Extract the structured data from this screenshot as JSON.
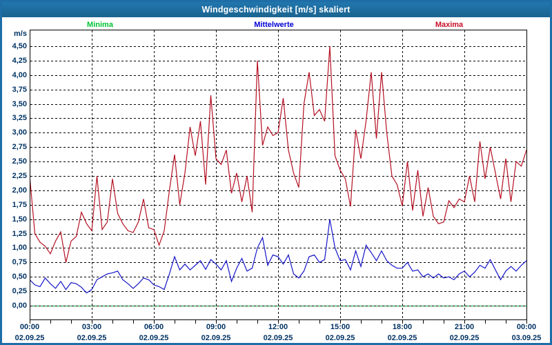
{
  "window": {
    "title": "Windgeschwindigkeit [m/s] skaliert"
  },
  "legend": {
    "items": [
      {
        "label": "Minima",
        "color": "#00c233"
      },
      {
        "label": "Mittelwerte",
        "color": "#0000d6"
      },
      {
        "label": "Maxima",
        "color": "#c80f25"
      }
    ]
  },
  "chart_data": {
    "type": "line",
    "title": "Windgeschwindigkeit [m/s] skaliert",
    "ylabel": "m/s",
    "xlabel": "",
    "grid": "dashed",
    "legend_position": "top",
    "ylim": [
      -0.24,
      4.79
    ],
    "y_ticks": [
      {
        "value": 4.5,
        "label": "4,50"
      },
      {
        "value": 4.25,
        "label": "4,25"
      },
      {
        "value": 4.0,
        "label": "4,00"
      },
      {
        "value": 3.75,
        "label": "3,75"
      },
      {
        "value": 3.5,
        "label": "3,50"
      },
      {
        "value": 3.25,
        "label": "3,25"
      },
      {
        "value": 3.0,
        "label": "3,00"
      },
      {
        "value": 2.75,
        "label": "2,75"
      },
      {
        "value": 2.5,
        "label": "2,50"
      },
      {
        "value": 2.25,
        "label": "2,25"
      },
      {
        "value": 2.0,
        "label": "2,00"
      },
      {
        "value": 1.75,
        "label": "1,75"
      },
      {
        "value": 1.5,
        "label": "1,50"
      },
      {
        "value": 1.25,
        "label": "1,25"
      },
      {
        "value": 1.0,
        "label": "1,00"
      },
      {
        "value": 0.75,
        "label": "0,75"
      },
      {
        "value": 0.5,
        "label": "0,50"
      },
      {
        "value": 0.25,
        "label": "0,25"
      },
      {
        "value": 0.0,
        "label": "0,00"
      }
    ],
    "x_range_hours": [
      0,
      24
    ],
    "x_major_ticks": [
      {
        "hour": 0,
        "time": "00:00",
        "date": "02.09.25"
      },
      {
        "hour": 3,
        "time": "03:00",
        "date": "02.09.25"
      },
      {
        "hour": 6,
        "time": "06:00",
        "date": "02.09.25"
      },
      {
        "hour": 9,
        "time": "09:00",
        "date": "02.09.25"
      },
      {
        "hour": 12,
        "time": "12:00",
        "date": "02.09.25"
      },
      {
        "hour": 15,
        "time": "15:00",
        "date": "02.09.25"
      },
      {
        "hour": 18,
        "time": "18:00",
        "date": "02.09.25"
      },
      {
        "hour": 21,
        "time": "21:00",
        "date": "02.09.25"
      },
      {
        "hour": 24,
        "time": "00:00",
        "date": "03.09.25"
      }
    ],
    "x_minor_tick_every_hours": 1,
    "sample_interval_minutes": 15,
    "series": [
      {
        "name": "Minima",
        "color": "#00b43c",
        "constant_value": 0.0
      },
      {
        "name": "Mittelwerte",
        "color": "#1414c8",
        "values": [
          0.45,
          0.36,
          0.33,
          0.48,
          0.38,
          0.3,
          0.42,
          0.28,
          0.4,
          0.38,
          0.32,
          0.22,
          0.28,
          0.45,
          0.5,
          0.55,
          0.57,
          0.6,
          0.45,
          0.38,
          0.3,
          0.38,
          0.48,
          0.45,
          0.36,
          0.33,
          0.28,
          0.55,
          0.85,
          0.62,
          0.72,
          0.62,
          0.7,
          0.78,
          0.63,
          0.8,
          0.72,
          0.62,
          0.78,
          0.42,
          0.65,
          0.82,
          0.6,
          0.65,
          1.0,
          1.18,
          0.7,
          0.88,
          0.85,
          0.72,
          0.88,
          0.55,
          0.48,
          0.6,
          0.85,
          0.88,
          0.75,
          0.8,
          1.5,
          1.0,
          0.78,
          0.8,
          0.62,
          0.95,
          0.68,
          1.05,
          0.92,
          0.78,
          0.95,
          0.78,
          0.7,
          0.65,
          0.65,
          0.75,
          0.6,
          0.62,
          0.5,
          0.55,
          0.48,
          0.55,
          0.48,
          0.5,
          0.45,
          0.55,
          0.6,
          0.5,
          0.58,
          0.7,
          0.65,
          0.8,
          0.62,
          0.45,
          0.6,
          0.68,
          0.6,
          0.7,
          0.78
        ]
      },
      {
        "name": "Maxima",
        "color": "#b40f21",
        "values": [
          2.25,
          1.25,
          1.1,
          1.03,
          0.9,
          1.12,
          1.28,
          0.75,
          1.12,
          1.2,
          1.62,
          1.42,
          1.3,
          2.25,
          1.32,
          1.45,
          2.2,
          1.6,
          1.42,
          1.3,
          1.27,
          1.45,
          1.85,
          1.35,
          1.32,
          1.05,
          1.3,
          2.0,
          2.62,
          1.75,
          2.3,
          3.1,
          2.6,
          3.2,
          2.1,
          3.65,
          2.55,
          2.45,
          2.7,
          1.95,
          2.3,
          1.8,
          2.25,
          1.62,
          4.25,
          2.78,
          3.1,
          2.95,
          3.0,
          3.6,
          2.7,
          2.3,
          2.05,
          3.5,
          4.05,
          3.3,
          3.4,
          3.2,
          4.5,
          2.6,
          2.35,
          2.2,
          1.72,
          3.05,
          2.55,
          3.2,
          4.05,
          2.9,
          4.05,
          3.0,
          2.25,
          2.1,
          1.73,
          2.5,
          1.65,
          2.35,
          1.55,
          2.05,
          1.55,
          1.42,
          1.45,
          1.82,
          1.7,
          1.85,
          1.8,
          2.25,
          1.8,
          2.85,
          2.2,
          2.75,
          2.3,
          1.85,
          2.55,
          1.8,
          2.5,
          2.42,
          2.7
        ]
      }
    ]
  }
}
